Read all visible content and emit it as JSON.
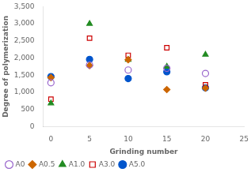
{
  "chart_data": {
    "type": "scatter",
    "title": "",
    "xlabel": "Grinding number",
    "ylabel": "Degree of polymerization",
    "x": [
      0,
      5,
      10,
      15,
      20
    ],
    "series": [
      {
        "name": "A0",
        "color": "#9966cc",
        "marker": "circle-open",
        "values": [
          1280,
          1800,
          1650,
          1700,
          1550
        ]
      },
      {
        "name": "A0.5",
        "color": "#cc6600",
        "marker": "diamond",
        "values": [
          1430,
          1780,
          1950,
          1080,
          1120
        ]
      },
      {
        "name": "A1.0",
        "color": "#228B22",
        "marker": "triangle",
        "values": [
          680,
          3000,
          1950,
          1750,
          2100
        ]
      },
      {
        "name": "A3.0",
        "color": "#cc0000",
        "marker": "square-open",
        "values": [
          800,
          2580,
          2080,
          2300,
          1220
        ]
      },
      {
        "name": "A5.0",
        "color": "#0055cc",
        "marker": "circle",
        "values": [
          1460,
          1960,
          1400,
          1600,
          1130
        ]
      }
    ],
    "xlim": [
      -1,
      25
    ],
    "xticks": [
      0,
      5,
      10,
      15,
      20,
      25
    ],
    "ylim": [
      0,
      3500
    ],
    "yticks": [
      0,
      500,
      1000,
      1500,
      2000,
      2500,
      3000,
      3500
    ],
    "grid": false,
    "legend": "lower left"
  }
}
